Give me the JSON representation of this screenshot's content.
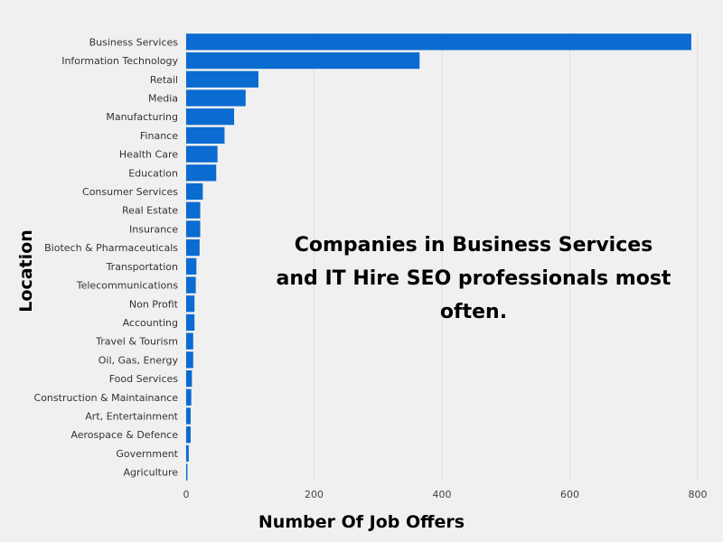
{
  "chart_data": {
    "type": "bar",
    "orientation": "horizontal",
    "categories": [
      "Business Services",
      "Information Technology",
      "Retail",
      "Media",
      "Manufacturing",
      "Finance",
      "Health Care",
      "Education",
      "Consumer Services",
      "Real Estate",
      "Insurance",
      "Biotech & Pharmaceuticals",
      "Transportation",
      "Telecommunications",
      "Non Profit",
      "Accounting",
      "Travel & Tourism",
      "Oil, Gas, Energy",
      "Food Services",
      "Construction & Maintainance",
      "Art, Entertainment",
      "Aerospace & Defence",
      "Government",
      "Agriculture"
    ],
    "values": [
      790,
      365,
      113,
      93,
      75,
      60,
      49,
      47,
      26,
      22,
      22,
      21,
      16,
      15,
      13,
      13,
      11,
      11,
      9,
      8,
      7,
      7,
      4,
      2
    ],
    "xlabel": "Number Of Job Offers",
    "ylabel": "Location",
    "xlim": [
      0,
      800
    ],
    "xticks": [
      0,
      200,
      400,
      600,
      800
    ],
    "grid": "vertical",
    "bar_color": "#0a6bd0",
    "background": "#f0f0f0",
    "annotation": [
      "Companies in Business Services",
      "and IT Hire SEO professionals most",
      "often."
    ]
  }
}
